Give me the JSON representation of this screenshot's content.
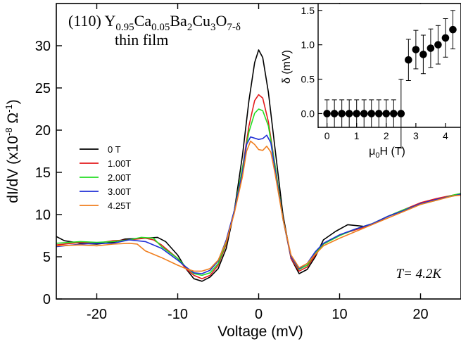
{
  "chart_data": [
    {
      "type": "line",
      "xlabel": "Voltage (mV)",
      "ylabel_parts": {
        "a": "dI/dV (x10",
        "exp1": "-8",
        "b": " Ω",
        "exp2": "-1",
        "c": ")"
      },
      "xlim": [
        -25,
        25
      ],
      "ylim": [
        0,
        35
      ],
      "xticks": [
        -20,
        -10,
        0,
        10,
        20
      ],
      "yticks": [
        0,
        5,
        10,
        15,
        20,
        25,
        30
      ],
      "grid": false,
      "legend_position": "left-middle",
      "annotations": {
        "title_line1": {
          "p1": "(110) Y",
          "s1": "0.95",
          "p2": "Ca",
          "s2": "0.05",
          "p3": "Ba",
          "s3": "2",
          "p4": "Cu",
          "s4": "3",
          "p5": "O",
          "s5": "7-δ"
        },
        "title_line2": "thin film",
        "temperature": "T= 4.2K"
      },
      "series": [
        {
          "name": "0 T",
          "color": "#000000",
          "points": [
            [
              -25,
              7.4
            ],
            [
              -24,
              6.9
            ],
            [
              -22,
              6.6
            ],
            [
              -20,
              6.5
            ],
            [
              -18,
              6.7
            ],
            [
              -16.5,
              7.1
            ],
            [
              -14,
              7.2
            ],
            [
              -12.5,
              7.3
            ],
            [
              -11.5,
              6.8
            ],
            [
              -10,
              5.2
            ],
            [
              -9,
              3.6
            ],
            [
              -8,
              2.4
            ],
            [
              -7,
              2.1
            ],
            [
              -6,
              2.6
            ],
            [
              -5,
              3.6
            ],
            [
              -4,
              6
            ],
            [
              -3,
              10.5
            ],
            [
              -2,
              17
            ],
            [
              -1.2,
              23.5
            ],
            [
              -0.5,
              28
            ],
            [
              0,
              29.5
            ],
            [
              0.5,
              28.6
            ],
            [
              1.2,
              24.5
            ],
            [
              2,
              18
            ],
            [
              3,
              10
            ],
            [
              4,
              4.8
            ],
            [
              5,
              3.0
            ],
            [
              6,
              3.5
            ],
            [
              7,
              5
            ],
            [
              8,
              7
            ],
            [
              9.5,
              8
            ],
            [
              11,
              8.8
            ],
            [
              13,
              8.6
            ],
            [
              14,
              8.9
            ],
            [
              16,
              9.8
            ],
            [
              18,
              10.5
            ],
            [
              20,
              11.3
            ],
            [
              22,
              11.8
            ],
            [
              24,
              12.2
            ],
            [
              25,
              12.5
            ]
          ]
        },
        {
          "name": "1.00T",
          "color": "#e31a1c",
          "points": [
            [
              -25,
              6.4
            ],
            [
              -22,
              6.7
            ],
            [
              -20,
              6.6
            ],
            [
              -18,
              6.9
            ],
            [
              -16,
              7.0
            ],
            [
              -14,
              7.2
            ],
            [
              -13,
              7.0
            ],
            [
              -12,
              6.4
            ],
            [
              -10,
              4.8
            ],
            [
              -9,
              3.6
            ],
            [
              -8,
              2.8
            ],
            [
              -7,
              2.4
            ],
            [
              -6,
              2.8
            ],
            [
              -5,
              4
            ],
            [
              -4,
              6.5
            ],
            [
              -3,
              10.5
            ],
            [
              -2,
              15.5
            ],
            [
              -1.2,
              20.5
            ],
            [
              -0.5,
              23.5
            ],
            [
              0,
              24.2
            ],
            [
              0.5,
              23.8
            ],
            [
              1.2,
              21
            ],
            [
              2,
              16
            ],
            [
              3,
              9.5
            ],
            [
              4,
              4.8
            ],
            [
              5,
              3.3
            ],
            [
              6,
              3.8
            ],
            [
              7,
              5.2
            ],
            [
              8,
              6.5
            ],
            [
              10,
              7.6
            ],
            [
              12,
              8.2
            ],
            [
              14,
              8.8
            ],
            [
              16,
              9.8
            ],
            [
              18,
              10.6
            ],
            [
              20,
              11.4
            ],
            [
              22,
              11.9
            ],
            [
              24,
              12.3
            ],
            [
              25,
              12.5
            ]
          ]
        },
        {
          "name": "2.00T",
          "color": "#22dd22",
          "points": [
            [
              -25,
              6.6
            ],
            [
              -22,
              6.8
            ],
            [
              -20,
              6.7
            ],
            [
              -18,
              6.8
            ],
            [
              -16,
              7.0
            ],
            [
              -14.5,
              7.3
            ],
            [
              -13,
              7.2
            ],
            [
              -12,
              6.2
            ],
            [
              -10,
              4.8
            ],
            [
              -9,
              3.8
            ],
            [
              -8,
              3.0
            ],
            [
              -7,
              2.8
            ],
            [
              -6,
              3.1
            ],
            [
              -5,
              4.2
            ],
            [
              -4,
              6.7
            ],
            [
              -3,
              10.5
            ],
            [
              -2,
              15.5
            ],
            [
              -1.2,
              19.8
            ],
            [
              -0.5,
              22
            ],
            [
              0,
              22.5
            ],
            [
              0.5,
              22.3
            ],
            [
              1.2,
              20.5
            ],
            [
              2,
              16
            ],
            [
              3,
              9.5
            ],
            [
              4,
              5
            ],
            [
              5,
              3.5
            ],
            [
              6,
              4
            ],
            [
              7,
              5.4
            ],
            [
              8,
              6.5
            ],
            [
              10,
              7.5
            ],
            [
              12,
              8.3
            ],
            [
              14,
              8.9
            ],
            [
              16,
              9.8
            ],
            [
              18,
              10.6
            ],
            [
              20,
              11.2
            ],
            [
              22,
              11.7
            ],
            [
              24,
              12.3
            ],
            [
              25,
              12.5
            ]
          ]
        },
        {
          "name": "3.00T",
          "color": "#1f2fd6",
          "points": [
            [
              -25,
              6.2
            ],
            [
              -22,
              6.5
            ],
            [
              -20,
              6.6
            ],
            [
              -18,
              6.6
            ],
            [
              -16,
              7.0
            ],
            [
              -14,
              6.8
            ],
            [
              -12,
              6.0
            ],
            [
              -10,
              4.6
            ],
            [
              -9,
              3.8
            ],
            [
              -8,
              3.1
            ],
            [
              -7,
              3.0
            ],
            [
              -6,
              3.4
            ],
            [
              -5,
              4.5
            ],
            [
              -4,
              7
            ],
            [
              -3,
              10.5
            ],
            [
              -2,
              15
            ],
            [
              -1.5,
              18.3
            ],
            [
              -1,
              19.2
            ],
            [
              0,
              18.9
            ],
            [
              0.5,
              19
            ],
            [
              1,
              19.4
            ],
            [
              1.5,
              18.5
            ],
            [
              2,
              15.5
            ],
            [
              3,
              9.5
            ],
            [
              4,
              5
            ],
            [
              5,
              3.6
            ],
            [
              6,
              4.2
            ],
            [
              7,
              5.6
            ],
            [
              8,
              6.6
            ],
            [
              10,
              7.6
            ],
            [
              12,
              8.3
            ],
            [
              14,
              8.9
            ],
            [
              16,
              9.8
            ],
            [
              18,
              10.5
            ],
            [
              20,
              11.3
            ],
            [
              22,
              11.8
            ],
            [
              24,
              12.2
            ],
            [
              25,
              12.4
            ]
          ]
        },
        {
          "name": "4.25T",
          "color": "#f07e1e",
          "points": [
            [
              -25,
              6.3
            ],
            [
              -22,
              6.4
            ],
            [
              -20,
              6.3
            ],
            [
              -18,
              6.5
            ],
            [
              -16,
              6.6
            ],
            [
              -15,
              6.5
            ],
            [
              -14,
              5.7
            ],
            [
              -12,
              4.9
            ],
            [
              -10,
              4.0
            ],
            [
              -9,
              3.6
            ],
            [
              -8,
              3.3
            ],
            [
              -7,
              3.3
            ],
            [
              -6,
              3.6
            ],
            [
              -5,
              4.6
            ],
            [
              -4,
              6.8
            ],
            [
              -3,
              10.2
            ],
            [
              -2,
              14.5
            ],
            [
              -1.5,
              17.5
            ],
            [
              -1,
              18.7
            ],
            [
              -0.5,
              18.3
            ],
            [
              0,
              17.7
            ],
            [
              0.5,
              17.6
            ],
            [
              1,
              18.1
            ],
            [
              1.5,
              17.4
            ],
            [
              2,
              15
            ],
            [
              3,
              9.5
            ],
            [
              4,
              5.2
            ],
            [
              5,
              3.7
            ],
            [
              6,
              4.2
            ],
            [
              7,
              5.3
            ],
            [
              8,
              6.3
            ],
            [
              10,
              7.2
            ],
            [
              12,
              8.0
            ],
            [
              14,
              8.8
            ],
            [
              16,
              9.6
            ],
            [
              18,
              10.4
            ],
            [
              20,
              11.2
            ],
            [
              22,
              11.7
            ],
            [
              24,
              12.2
            ],
            [
              25,
              12.3
            ]
          ]
        }
      ]
    },
    {
      "type": "scatter",
      "inset": true,
      "xlabel_parts": {
        "a": "μ",
        "sub": "0",
        "b": "H (T)"
      },
      "ylabel": "δ (mV)",
      "xlim": [
        -0.3,
        4.5
      ],
      "ylim": [
        -0.2,
        1.6
      ],
      "xticks": [
        0,
        1,
        2,
        3,
        4
      ],
      "yticks": [
        0.0,
        0.5,
        1.0,
        1.5
      ],
      "grid": false,
      "points": [
        {
          "x": 0.0,
          "y": 0.0,
          "err": 0.2
        },
        {
          "x": 0.25,
          "y": 0.0,
          "err": 0.2
        },
        {
          "x": 0.5,
          "y": 0.0,
          "err": 0.2
        },
        {
          "x": 0.75,
          "y": 0.0,
          "err": 0.2
        },
        {
          "x": 1.0,
          "y": 0.0,
          "err": 0.2
        },
        {
          "x": 1.25,
          "y": 0.0,
          "err": 0.2
        },
        {
          "x": 1.5,
          "y": 0.0,
          "err": 0.2
        },
        {
          "x": 1.75,
          "y": 0.0,
          "err": 0.2
        },
        {
          "x": 2.0,
          "y": 0.0,
          "err": 0.2
        },
        {
          "x": 2.25,
          "y": 0.0,
          "err": 0.2
        },
        {
          "x": 2.5,
          "y": 0.0,
          "err": 0.5
        },
        {
          "x": 2.75,
          "y": 0.78,
          "err": 0.3
        },
        {
          "x": 3.0,
          "y": 0.93,
          "err": 0.28
        },
        {
          "x": 3.25,
          "y": 0.86,
          "err": 0.28
        },
        {
          "x": 3.5,
          "y": 0.95,
          "err": 0.28
        },
        {
          "x": 3.75,
          "y": 1.0,
          "err": 0.28
        },
        {
          "x": 4.0,
          "y": 1.1,
          "err": 0.28
        },
        {
          "x": 4.25,
          "y": 1.22,
          "err": 0.28
        }
      ]
    }
  ]
}
